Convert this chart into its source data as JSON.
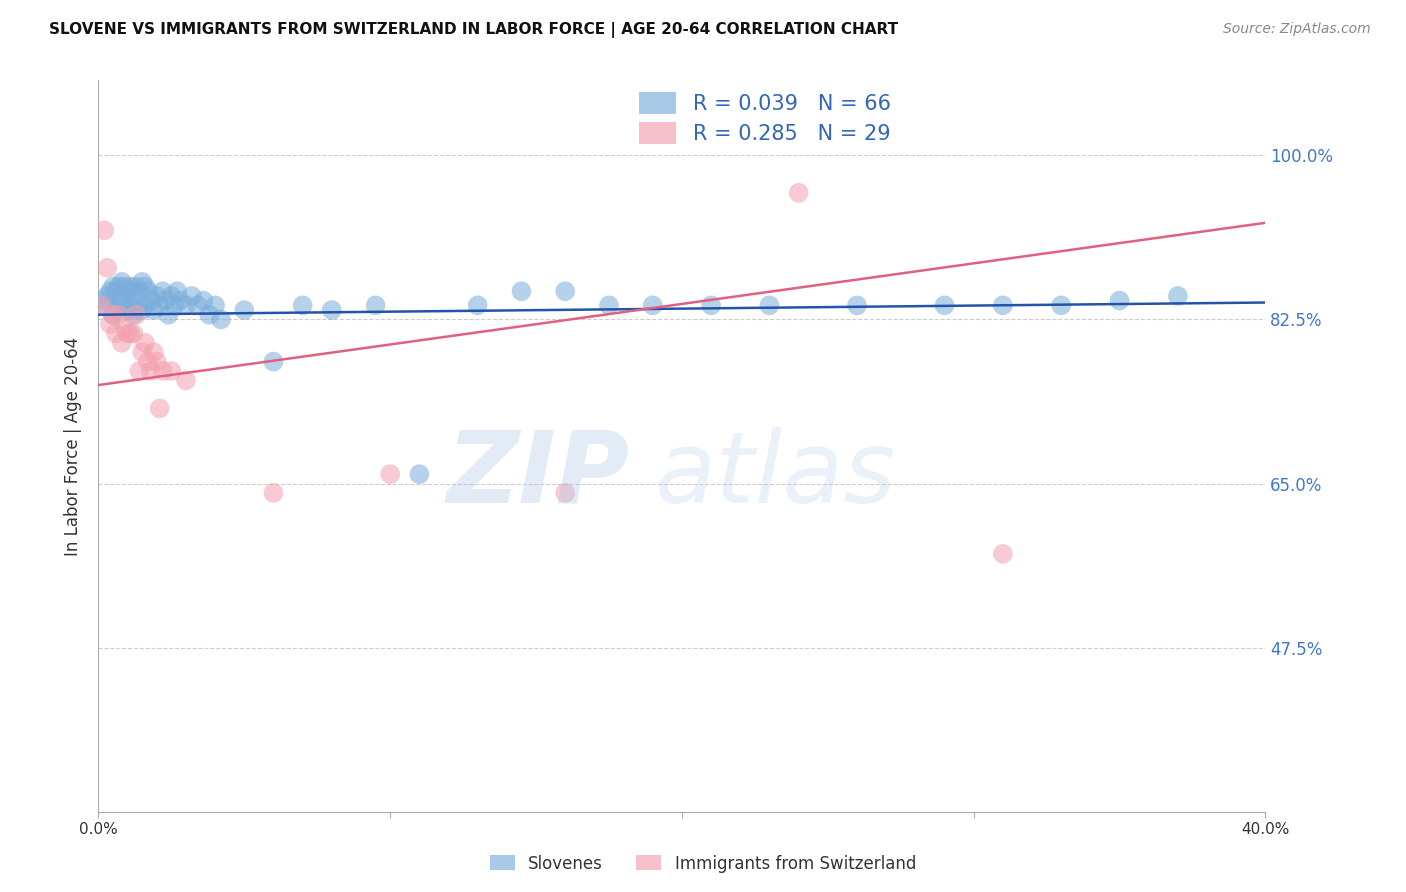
{
  "title": "SLOVENE VS IMMIGRANTS FROM SWITZERLAND IN LABOR FORCE | AGE 20-64 CORRELATION CHART",
  "source": "Source: ZipAtlas.com",
  "ylabel": "In Labor Force | Age 20-64",
  "yticks": [
    0.475,
    0.65,
    0.825,
    1.0
  ],
  "ytick_labels": [
    "47.5%",
    "65.0%",
    "82.5%",
    "100.0%"
  ],
  "xmin": 0.0,
  "xmax": 0.4,
  "ymin": 0.3,
  "ymax": 1.08,
  "blue_color": "#7aaddb",
  "pink_color": "#f4a0b0",
  "blue_line_color": "#2255aa",
  "pink_line_color": "#e06080",
  "legend_blue_R": "R = 0.039",
  "legend_blue_N": "N = 66",
  "legend_pink_R": "R = 0.285",
  "legend_pink_N": "N = 29",
  "blue_scatter_x": [
    0.001,
    0.002,
    0.003,
    0.004,
    0.005,
    0.005,
    0.006,
    0.006,
    0.007,
    0.007,
    0.008,
    0.008,
    0.009,
    0.009,
    0.01,
    0.01,
    0.011,
    0.011,
    0.012,
    0.012,
    0.013,
    0.013,
    0.014,
    0.014,
    0.015,
    0.015,
    0.016,
    0.016,
    0.017,
    0.018,
    0.019,
    0.02,
    0.021,
    0.022,
    0.023,
    0.024,
    0.025,
    0.026,
    0.027,
    0.028,
    0.03,
    0.032,
    0.034,
    0.036,
    0.038,
    0.04,
    0.042,
    0.05,
    0.06,
    0.07,
    0.08,
    0.095,
    0.11,
    0.13,
    0.145,
    0.16,
    0.175,
    0.19,
    0.21,
    0.23,
    0.26,
    0.29,
    0.31,
    0.33,
    0.35,
    0.37
  ],
  "blue_scatter_y": [
    0.84,
    0.845,
    0.85,
    0.855,
    0.86,
    0.83,
    0.855,
    0.835,
    0.86,
    0.84,
    0.865,
    0.845,
    0.86,
    0.84,
    0.855,
    0.835,
    0.86,
    0.84,
    0.855,
    0.83,
    0.86,
    0.835,
    0.855,
    0.84,
    0.865,
    0.835,
    0.86,
    0.84,
    0.855,
    0.845,
    0.835,
    0.85,
    0.84,
    0.855,
    0.845,
    0.83,
    0.85,
    0.84,
    0.855,
    0.845,
    0.84,
    0.85,
    0.84,
    0.845,
    0.83,
    0.84,
    0.825,
    0.835,
    0.78,
    0.84,
    0.835,
    0.84,
    0.66,
    0.84,
    0.855,
    0.855,
    0.84,
    0.84,
    0.84,
    0.84,
    0.84,
    0.84,
    0.84,
    0.84,
    0.845,
    0.85
  ],
  "pink_scatter_x": [
    0.001,
    0.002,
    0.003,
    0.004,
    0.005,
    0.006,
    0.007,
    0.008,
    0.009,
    0.01,
    0.011,
    0.012,
    0.013,
    0.014,
    0.015,
    0.016,
    0.017,
    0.018,
    0.019,
    0.02,
    0.021,
    0.022,
    0.025,
    0.03,
    0.06,
    0.1,
    0.16,
    0.24,
    0.31
  ],
  "pink_scatter_y": [
    0.84,
    0.92,
    0.88,
    0.82,
    0.83,
    0.81,
    0.83,
    0.8,
    0.815,
    0.81,
    0.81,
    0.81,
    0.83,
    0.77,
    0.79,
    0.8,
    0.78,
    0.77,
    0.79,
    0.78,
    0.73,
    0.77,
    0.77,
    0.76,
    0.64,
    0.66,
    0.64,
    0.96,
    0.575
  ]
}
